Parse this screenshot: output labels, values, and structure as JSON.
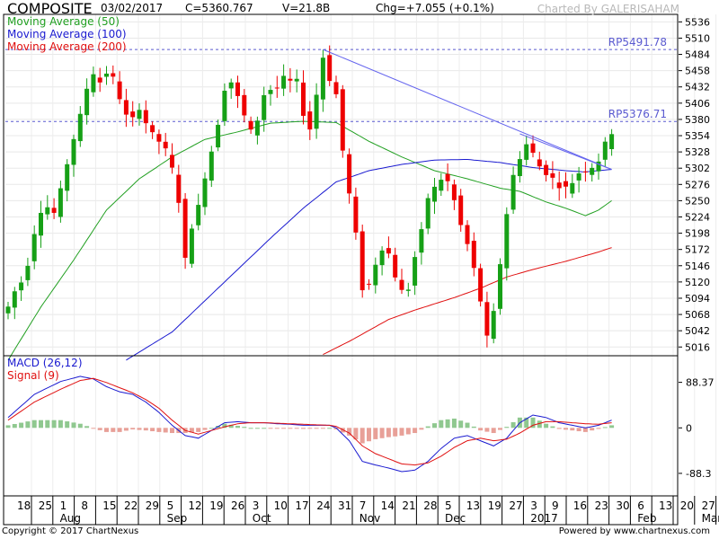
{
  "header": {
    "symbol": "COMPOSITE",
    "date": "03/02/2017",
    "close": "C=5360.767",
    "volume": "V=21.8B",
    "change": "Chg=+7.055 (+0.1%)",
    "credit": "Charted By GALERISAHAM"
  },
  "legend": {
    "ma50": "Moving Average (50)",
    "ma100": "Moving Average (100)",
    "ma200": "Moving Average (200)",
    "macd": "MACD (26,12)",
    "signal": "Signal (9)"
  },
  "footer": {
    "copyright": "Copyright © 2017 ChartNexus",
    "powered": "Powered by www.chartnexus.com"
  },
  "colors": {
    "up": "#16a016",
    "down": "#ee0000",
    "ma50": "#22a022",
    "ma100": "#1a1ad0",
    "ma200": "#e01010",
    "trend": "#6464ee",
    "hline": "#5a5ad0",
    "hist_pos": "#8fc88f",
    "hist_neg": "#e8a098"
  },
  "chart_data": {
    "type": "candlestick",
    "y_ticks": [
      5536,
      5510,
      5484,
      5458,
      5432,
      5406,
      5380,
      5354,
      5328,
      5302,
      5276,
      5250,
      5224,
      5198,
      5172,
      5146,
      5120,
      5094,
      5068,
      5042,
      5016
    ],
    "ylim": [
      5002,
      5548
    ],
    "macd_ticks": [
      "88.37",
      "0",
      "-88.3"
    ],
    "macd_ylim": [
      -132,
      140
    ],
    "hlines": [
      {
        "label": "RP5491.78",
        "value": 5491.78
      },
      {
        "label": "RP5376.71",
        "value": 5376.71
      }
    ],
    "x_labels": [
      "18",
      "25",
      "1",
      "8",
      "15",
      "22",
      "29",
      "5",
      "12",
      "19",
      "26",
      "3",
      "10",
      "17",
      "24",
      "31",
      "7",
      "14",
      "21",
      "28",
      "5",
      "13",
      "19",
      "27",
      "3",
      "9",
      "16",
      "23",
      "30",
      "6",
      "13",
      "20",
      "27"
    ],
    "month_labels": [
      {
        "label": "Aug",
        "index": 2
      },
      {
        "label": "Sep",
        "index": 7
      },
      {
        "label": "Oct",
        "index": 11
      },
      {
        "label": "Nov",
        "index": 16
      },
      {
        "label": "Dec",
        "index": 20
      },
      {
        "label": "2017",
        "index": 24
      },
      {
        "label": "Feb",
        "index": 29
      },
      {
        "label": "Mar",
        "index": 32
      }
    ],
    "price_anchors": [
      [
        0,
        5080
      ],
      [
        1,
        5105
      ],
      [
        2,
        5120
      ],
      [
        3,
        5150
      ],
      [
        4,
        5200
      ],
      [
        5,
        5235
      ],
      [
        6,
        5240
      ],
      [
        7,
        5230
      ],
      [
        8,
        5265
      ],
      [
        9,
        5310
      ],
      [
        10,
        5350
      ],
      [
        11,
        5385
      ],
      [
        12,
        5430
      ],
      [
        13,
        5455
      ],
      [
        14,
        5440
      ],
      [
        15,
        5455
      ],
      [
        16,
        5445
      ],
      [
        17,
        5415
      ],
      [
        18,
        5385
      ],
      [
        19,
        5380
      ],
      [
        20,
        5400
      ],
      [
        21,
        5375
      ],
      [
        22,
        5355
      ],
      [
        23,
        5345
      ],
      [
        24,
        5330
      ],
      [
        25,
        5300
      ],
      [
        26,
        5250
      ],
      [
        27,
        5155
      ],
      [
        28,
        5210
      ],
      [
        29,
        5240
      ],
      [
        30,
        5290
      ],
      [
        31,
        5330
      ],
      [
        32,
        5375
      ],
      [
        33,
        5430
      ],
      [
        34,
        5440
      ],
      [
        35,
        5415
      ],
      [
        36,
        5385
      ],
      [
        37,
        5360
      ],
      [
        38,
        5380
      ],
      [
        39,
        5420
      ],
      [
        40,
        5428
      ],
      [
        41,
        5430
      ],
      [
        42,
        5445
      ],
      [
        43,
        5440
      ],
      [
        44,
        5440
      ],
      [
        45,
        5390
      ],
      [
        46,
        5365
      ],
      [
        47,
        5420
      ],
      [
        48,
        5480
      ],
      [
        49,
        5445
      ],
      [
        50,
        5420
      ],
      [
        51,
        5330
      ],
      [
        52,
        5260
      ],
      [
        53,
        5195
      ],
      [
        54,
        5110
      ],
      [
        55,
        5115
      ],
      [
        56,
        5150
      ],
      [
        57,
        5175
      ],
      [
        58,
        5165
      ],
      [
        59,
        5130
      ],
      [
        60,
        5105
      ],
      [
        61,
        5110
      ],
      [
        62,
        5160
      ],
      [
        63,
        5200
      ],
      [
        64,
        5255
      ],
      [
        65,
        5270
      ],
      [
        66,
        5285
      ],
      [
        67,
        5280
      ],
      [
        68,
        5250
      ],
      [
        69,
        5210
      ],
      [
        70,
        5180
      ],
      [
        71,
        5140
      ],
      [
        72,
        5090
      ],
      [
        73,
        5030
      ],
      [
        74,
        5070
      ],
      [
        75,
        5150
      ],
      [
        76,
        5230
      ],
      [
        77,
        5290
      ],
      [
        78,
        5320
      ],
      [
        79,
        5340
      ],
      [
        80,
        5325
      ],
      [
        81,
        5305
      ],
      [
        82,
        5295
      ],
      [
        83,
        5285
      ],
      [
        84,
        5275
      ],
      [
        85,
        5270
      ],
      [
        86,
        5280
      ],
      [
        87,
        5295
      ],
      [
        88,
        5300
      ],
      [
        89,
        5305
      ],
      [
        90,
        5315
      ],
      [
        91,
        5340
      ],
      [
        92,
        5360
      ]
    ],
    "ma50": [
      [
        0,
        4995
      ],
      [
        5,
        5080
      ],
      [
        10,
        5155
      ],
      [
        15,
        5235
      ],
      [
        20,
        5285
      ],
      [
        25,
        5320
      ],
      [
        30,
        5348
      ],
      [
        35,
        5360
      ],
      [
        40,
        5374
      ],
      [
        45,
        5377
      ],
      [
        50,
        5375
      ],
      [
        55,
        5345
      ],
      [
        60,
        5320
      ],
      [
        65,
        5298
      ],
      [
        70,
        5285
      ],
      [
        75,
        5270
      ],
      [
        78,
        5265
      ],
      [
        82,
        5248
      ],
      [
        85,
        5238
      ],
      [
        88,
        5226
      ],
      [
        90,
        5235
      ],
      [
        92,
        5250
      ]
    ],
    "ma100": [
      [
        18,
        4995
      ],
      [
        25,
        5040
      ],
      [
        30,
        5090
      ],
      [
        35,
        5140
      ],
      [
        40,
        5190
      ],
      [
        45,
        5238
      ],
      [
        50,
        5280
      ],
      [
        55,
        5298
      ],
      [
        60,
        5308
      ],
      [
        65,
        5315
      ],
      [
        70,
        5316
      ],
      [
        75,
        5311
      ],
      [
        80,
        5303
      ],
      [
        85,
        5298
      ],
      [
        88,
        5296
      ],
      [
        90,
        5298
      ],
      [
        92,
        5300
      ]
    ],
    "ma200": [
      [
        48,
        5004
      ],
      [
        52,
        5025
      ],
      [
        58,
        5060
      ],
      [
        62,
        5075
      ],
      [
        68,
        5095
      ],
      [
        72,
        5110
      ],
      [
        76,
        5128
      ],
      [
        80,
        5140
      ],
      [
        85,
        5153
      ],
      [
        90,
        5168
      ],
      [
        92,
        5175
      ]
    ],
    "trendlines": [
      [
        [
          48,
          5491.78
        ],
        [
          92,
          5300
        ]
      ],
      [
        [
          78,
          5357
        ],
        [
          92,
          5300
        ]
      ]
    ],
    "macd": [
      [
        0,
        20
      ],
      [
        4,
        65
      ],
      [
        8,
        90
      ],
      [
        11,
        100
      ],
      [
        13,
        95
      ],
      [
        15,
        80
      ],
      [
        17,
        70
      ],
      [
        19,
        65
      ],
      [
        21,
        50
      ],
      [
        23,
        30
      ],
      [
        25,
        5
      ],
      [
        27,
        -15
      ],
      [
        29,
        -20
      ],
      [
        31,
        -5
      ],
      [
        33,
        10
      ],
      [
        35,
        12
      ],
      [
        37,
        10
      ],
      [
        39,
        10
      ],
      [
        41,
        8
      ],
      [
        43,
        7
      ],
      [
        45,
        5
      ],
      [
        47,
        5
      ],
      [
        49,
        5
      ],
      [
        50,
        0
      ],
      [
        52,
        -25
      ],
      [
        54,
        -65
      ],
      [
        56,
        -72
      ],
      [
        58,
        -78
      ],
      [
        60,
        -85
      ],
      [
        62,
        -82
      ],
      [
        64,
        -65
      ],
      [
        66,
        -40
      ],
      [
        68,
        -20
      ],
      [
        70,
        -15
      ],
      [
        72,
        -25
      ],
      [
        74,
        -35
      ],
      [
        76,
        -20
      ],
      [
        78,
        10
      ],
      [
        80,
        25
      ],
      [
        82,
        20
      ],
      [
        84,
        10
      ],
      [
        86,
        5
      ],
      [
        88,
        0
      ],
      [
        90,
        5
      ],
      [
        92,
        15
      ]
    ],
    "signal": [
      [
        0,
        15
      ],
      [
        4,
        50
      ],
      [
        8,
        75
      ],
      [
        11,
        92
      ],
      [
        13,
        96
      ],
      [
        15,
        88
      ],
      [
        17,
        78
      ],
      [
        19,
        68
      ],
      [
        21,
        55
      ],
      [
        23,
        38
      ],
      [
        25,
        15
      ],
      [
        27,
        -5
      ],
      [
        29,
        -12
      ],
      [
        31,
        -5
      ],
      [
        33,
        2
      ],
      [
        35,
        8
      ],
      [
        37,
        10
      ],
      [
        39,
        10
      ],
      [
        41,
        9
      ],
      [
        43,
        8
      ],
      [
        45,
        7
      ],
      [
        47,
        6
      ],
      [
        49,
        5
      ],
      [
        50,
        3
      ],
      [
        52,
        -10
      ],
      [
        54,
        -35
      ],
      [
        56,
        -50
      ],
      [
        58,
        -60
      ],
      [
        60,
        -70
      ],
      [
        62,
        -72
      ],
      [
        64,
        -68
      ],
      [
        66,
        -55
      ],
      [
        68,
        -38
      ],
      [
        70,
        -25
      ],
      [
        72,
        -20
      ],
      [
        74,
        -25
      ],
      [
        76,
        -22
      ],
      [
        78,
        -10
      ],
      [
        80,
        5
      ],
      [
        82,
        12
      ],
      [
        84,
        12
      ],
      [
        86,
        10
      ],
      [
        88,
        8
      ],
      [
        90,
        7
      ],
      [
        92,
        10
      ]
    ]
  }
}
